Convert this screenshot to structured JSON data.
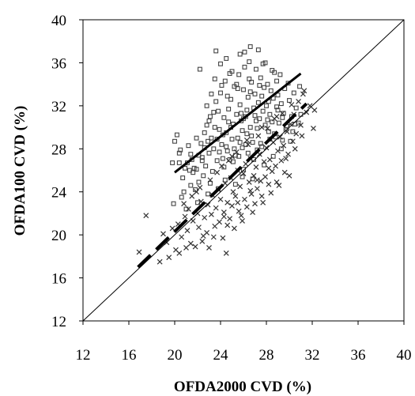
{
  "chart_data": {
    "type": "scatter",
    "title": "",
    "xlabel": "OFDA2000 CVD (%)",
    "ylabel": "OFDA100 CVD (%)",
    "xlim": [
      12,
      40
    ],
    "ylim": [
      12,
      40
    ],
    "xticks": [
      "12",
      "16",
      "20",
      "24",
      "28",
      "32",
      "36",
      "40"
    ],
    "yticks": [
      "12",
      "16",
      "20",
      "24",
      "28",
      "32",
      "36",
      "40"
    ],
    "grid": false,
    "legend": "none",
    "series": [
      {
        "marker": "square",
        "points": [
          [
            19.8,
            26.7
          ],
          [
            20.4,
            26.7
          ],
          [
            20.9,
            26.2
          ],
          [
            21.1,
            26.7
          ],
          [
            21.5,
            27.0
          ],
          [
            21.3,
            26.0
          ],
          [
            21.7,
            26.2
          ],
          [
            20.5,
            27.9
          ],
          [
            21.2,
            28.3
          ],
          [
            21.4,
            27.5
          ],
          [
            20.2,
            29.3
          ],
          [
            20.4,
            27.6
          ],
          [
            20.0,
            28.7
          ],
          [
            21.9,
            26.1
          ],
          [
            22.1,
            27.4
          ],
          [
            22.3,
            28.5
          ],
          [
            22.6,
            29.5
          ],
          [
            22.4,
            27.2
          ],
          [
            22.8,
            30.2
          ],
          [
            22.9,
            28.7
          ],
          [
            22.7,
            26.4
          ],
          [
            23.0,
            27.6
          ],
          [
            23.1,
            31.0
          ],
          [
            23.2,
            29.0
          ],
          [
            23.4,
            28.0
          ],
          [
            23.5,
            30.0
          ],
          [
            23.6,
            32.4
          ],
          [
            23.8,
            31.5
          ],
          [
            23.7,
            26.9
          ],
          [
            23.9,
            29.8
          ],
          [
            24.0,
            33.2
          ],
          [
            24.1,
            28.4
          ],
          [
            24.2,
            27.1
          ],
          [
            24.3,
            30.9
          ],
          [
            24.4,
            34.3
          ],
          [
            24.5,
            29.5
          ],
          [
            24.6,
            27.8
          ],
          [
            24.7,
            31.7
          ],
          [
            24.8,
            35.0
          ],
          [
            24.9,
            32.6
          ],
          [
            25.0,
            28.9
          ],
          [
            25.1,
            30.3
          ],
          [
            25.2,
            33.8
          ],
          [
            25.3,
            27.4
          ],
          [
            25.4,
            31.2
          ],
          [
            25.5,
            29.0
          ],
          [
            25.6,
            34.9
          ],
          [
            25.7,
            32.1
          ],
          [
            25.8,
            30.6
          ],
          [
            25.9,
            28.1
          ],
          [
            26.0,
            33.5
          ],
          [
            26.1,
            35.6
          ],
          [
            26.2,
            31.0
          ],
          [
            26.3,
            29.4
          ],
          [
            26.4,
            32.8
          ],
          [
            26.5,
            36.1
          ],
          [
            26.6,
            30.0
          ],
          [
            26.7,
            34.2
          ],
          [
            26.8,
            28.6
          ],
          [
            26.9,
            31.8
          ],
          [
            27.0,
            33.1
          ],
          [
            27.1,
            35.4
          ],
          [
            27.2,
            29.9
          ],
          [
            27.3,
            32.3
          ],
          [
            27.4,
            30.8
          ],
          [
            27.5,
            34.6
          ],
          [
            27.6,
            28.2
          ],
          [
            27.7,
            31.5
          ],
          [
            27.8,
            33.7
          ],
          [
            27.9,
            30.2
          ],
          [
            28.0,
            32.0
          ],
          [
            28.1,
            34.0
          ],
          [
            28.2,
            29.6
          ],
          [
            28.3,
            31.2
          ],
          [
            28.4,
            33.4
          ],
          [
            28.5,
            30.5
          ],
          [
            28.6,
            32.7
          ],
          [
            28.7,
            35.1
          ],
          [
            28.8,
            29.1
          ],
          [
            28.9,
            31.9
          ],
          [
            29.0,
            33.0
          ],
          [
            29.1,
            30.4
          ],
          [
            29.2,
            34.9
          ],
          [
            29.3,
            32.2
          ],
          [
            29.4,
            28.8
          ],
          [
            29.5,
            31.3
          ],
          [
            29.6,
            33.6
          ],
          [
            29.8,
            30.1
          ],
          [
            30.0,
            32.5
          ],
          [
            30.2,
            31.0
          ],
          [
            30.4,
            33.2
          ],
          [
            30.6,
            31.8
          ],
          [
            30.8,
            30.4
          ],
          [
            22.2,
            35.4
          ],
          [
            23.6,
            37.1
          ],
          [
            24.5,
            36.4
          ],
          [
            25.7,
            36.8
          ],
          [
            26.1,
            37.0
          ],
          [
            26.6,
            37.5
          ],
          [
            27.3,
            37.2
          ],
          [
            24.0,
            35.9
          ],
          [
            25.0,
            35.2
          ],
          [
            27.9,
            36.0
          ],
          [
            28.5,
            35.3
          ],
          [
            25.4,
            34.0
          ],
          [
            24.3,
            26.3
          ],
          [
            25.1,
            26.8
          ],
          [
            26.0,
            26.1
          ],
          [
            23.3,
            25.9
          ],
          [
            22.5,
            25.5
          ],
          [
            21.6,
            25.8
          ],
          [
            24.8,
            27.0
          ],
          [
            25.6,
            27.3
          ],
          [
            26.4,
            27.6
          ],
          [
            27.2,
            27.9
          ],
          [
            23.1,
            24.8
          ],
          [
            21.8,
            24.2
          ],
          [
            22.9,
            23.8
          ],
          [
            24.4,
            25.1
          ],
          [
            25.9,
            25.4
          ],
          [
            20.8,
            24.0
          ],
          [
            22.0,
            23.0
          ],
          [
            21.0,
            22.4
          ],
          [
            19.9,
            22.9
          ],
          [
            20.6,
            23.5
          ],
          [
            23.8,
            24.3
          ],
          [
            25.3,
            24.7
          ],
          [
            26.8,
            25.2
          ],
          [
            27.8,
            26.5
          ],
          [
            28.6,
            27.3
          ],
          [
            29.3,
            28.0
          ],
          [
            30.1,
            28.7
          ],
          [
            24.6,
            32.9
          ],
          [
            25.5,
            33.6
          ],
          [
            26.3,
            31.6
          ],
          [
            27.1,
            30.6
          ],
          [
            23.4,
            31.4
          ],
          [
            22.8,
            32.0
          ],
          [
            24.2,
            29.3
          ],
          [
            25.9,
            29.7
          ],
          [
            26.7,
            29.2
          ],
          [
            27.5,
            28.5
          ],
          [
            28.3,
            28.9
          ],
          [
            29.7,
            29.8
          ],
          [
            30.5,
            30.3
          ],
          [
            23.0,
            30.6
          ],
          [
            24.7,
            30.5
          ],
          [
            26.2,
            28.4
          ],
          [
            27.6,
            32.9
          ],
          [
            28.9,
            34.3
          ],
          [
            29.9,
            34.1
          ],
          [
            30.9,
            33.8
          ],
          [
            22.6,
            28.1
          ],
          [
            21.9,
            29.0
          ],
          [
            25.2,
            28.0
          ],
          [
            26.9,
            27.0
          ],
          [
            24.1,
            33.9
          ],
          [
            23.5,
            34.5
          ],
          [
            26.5,
            34.5
          ],
          [
            27.7,
            35.9
          ],
          [
            22.4,
            26.9
          ],
          [
            23.9,
            27.7
          ],
          [
            25.8,
            31.3
          ],
          [
            27.0,
            31.1
          ],
          [
            28.1,
            30.7
          ],
          [
            29.0,
            31.6
          ],
          [
            24.9,
            30.0
          ],
          [
            26.0,
            30.8
          ],
          [
            20.7,
            25.3
          ],
          [
            21.4,
            24.6
          ],
          [
            22.1,
            24.9
          ],
          [
            23.7,
            28.9
          ],
          [
            24.5,
            28.2
          ],
          [
            25.7,
            28.6
          ],
          [
            26.6,
            33.3
          ],
          [
            27.4,
            33.9
          ],
          [
            28.2,
            32.4
          ],
          [
            29.4,
            30.9
          ],
          [
            30.3,
            29.6
          ],
          [
            31.0,
            31.2
          ],
          [
            28.7,
            29.4
          ],
          [
            23.2,
            33.1
          ]
        ]
      },
      {
        "marker": "cross",
        "points": [
          [
            16.9,
            18.4
          ],
          [
            17.5,
            21.8
          ],
          [
            18.7,
            17.5
          ],
          [
            19.0,
            20.1
          ],
          [
            19.3,
            19.3
          ],
          [
            19.8,
            20.6
          ],
          [
            20.1,
            18.6
          ],
          [
            20.3,
            21.0
          ],
          [
            20.6,
            19.8
          ],
          [
            20.9,
            21.7
          ],
          [
            21.1,
            20.4
          ],
          [
            21.2,
            22.4
          ],
          [
            21.4,
            19.2
          ],
          [
            21.6,
            21.3
          ],
          [
            21.8,
            18.9
          ],
          [
            22.0,
            22.0
          ],
          [
            22.1,
            20.7
          ],
          [
            22.3,
            23.1
          ],
          [
            22.5,
            19.9
          ],
          [
            22.6,
            21.6
          ],
          [
            22.8,
            20.2
          ],
          [
            22.9,
            22.8
          ],
          [
            23.0,
            18.8
          ],
          [
            23.2,
            21.9
          ],
          [
            23.3,
            23.7
          ],
          [
            23.5,
            20.8
          ],
          [
            23.6,
            22.5
          ],
          [
            23.8,
            24.2
          ],
          [
            23.9,
            21.2
          ],
          [
            24.0,
            23.3
          ],
          [
            24.2,
            19.7
          ],
          [
            24.3,
            22.1
          ],
          [
            24.4,
            24.8
          ],
          [
            24.5,
            18.3
          ],
          [
            24.6,
            23.0
          ],
          [
            24.8,
            21.5
          ],
          [
            24.9,
            25.3
          ],
          [
            25.0,
            22.7
          ],
          [
            25.1,
            24.0
          ],
          [
            25.2,
            20.6
          ],
          [
            25.3,
            23.6
          ],
          [
            25.5,
            26.0
          ],
          [
            25.6,
            22.2
          ],
          [
            25.7,
            24.5
          ],
          [
            25.8,
            21.8
          ],
          [
            26.0,
            25.7
          ],
          [
            26.1,
            23.3
          ],
          [
            26.2,
            26.6
          ],
          [
            26.3,
            22.6
          ],
          [
            26.5,
            24.9
          ],
          [
            26.6,
            27.1
          ],
          [
            26.7,
            23.8
          ],
          [
            26.9,
            25.5
          ],
          [
            27.0,
            22.9
          ],
          [
            27.1,
            26.3
          ],
          [
            27.2,
            24.3
          ],
          [
            27.4,
            27.5
          ],
          [
            27.5,
            25.0
          ],
          [
            27.6,
            23.6
          ],
          [
            27.8,
            26.8
          ],
          [
            27.9,
            25.4
          ],
          [
            28.0,
            28.1
          ],
          [
            28.2,
            24.7
          ],
          [
            28.3,
            27.0
          ],
          [
            28.5,
            25.9
          ],
          [
            28.6,
            28.6
          ],
          [
            28.8,
            26.4
          ],
          [
            28.9,
            24.9
          ],
          [
            29.0,
            27.8
          ],
          [
            29.2,
            29.1
          ],
          [
            29.3,
            26.9
          ],
          [
            29.5,
            28.3
          ],
          [
            29.6,
            25.8
          ],
          [
            29.8,
            29.6
          ],
          [
            29.9,
            27.5
          ],
          [
            30.1,
            30.3
          ],
          [
            30.3,
            28.7
          ],
          [
            30.4,
            31.2
          ],
          [
            30.6,
            29.4
          ],
          [
            30.8,
            32.4
          ],
          [
            31.0,
            30.2
          ],
          [
            31.2,
            33.1
          ],
          [
            31.5,
            31.4
          ],
          [
            31.8,
            32.0
          ],
          [
            32.1,
            29.9
          ],
          [
            32.2,
            31.6
          ],
          [
            31.3,
            33.4
          ],
          [
            19.5,
            17.9
          ],
          [
            20.4,
            18.3
          ],
          [
            21.5,
            23.6
          ],
          [
            22.2,
            24.4
          ],
          [
            23.1,
            25.1
          ],
          [
            24.1,
            26.4
          ],
          [
            24.7,
            26.9
          ],
          [
            25.4,
            27.7
          ],
          [
            26.4,
            28.4
          ],
          [
            27.3,
            29.2
          ],
          [
            28.1,
            29.9
          ],
          [
            28.7,
            30.8
          ],
          [
            29.4,
            31.3
          ],
          [
            30.2,
            32.1
          ],
          [
            21.0,
            18.8
          ],
          [
            22.4,
            19.4
          ],
          [
            23.4,
            19.8
          ],
          [
            24.6,
            20.9
          ],
          [
            25.9,
            21.3
          ],
          [
            26.8,
            22.1
          ],
          [
            27.7,
            23.0
          ],
          [
            28.4,
            23.9
          ],
          [
            29.1,
            24.6
          ],
          [
            30.0,
            25.5
          ],
          [
            20.8,
            22.9
          ],
          [
            21.9,
            24.0
          ],
          [
            23.7,
            25.8
          ],
          [
            25.0,
            27.3
          ],
          [
            26.3,
            28.8
          ],
          [
            27.6,
            30.0
          ],
          [
            28.9,
            31.0
          ],
          [
            24.3,
            21.7
          ],
          [
            25.5,
            23.0
          ],
          [
            26.6,
            24.1
          ],
          [
            27.2,
            25.1
          ],
          [
            28.2,
            26.2
          ],
          [
            29.7,
            27.1
          ],
          [
            30.5,
            28.0
          ],
          [
            31.1,
            29.2
          ]
        ]
      }
    ],
    "lines": [
      {
        "style": "identity",
        "x": [
          12,
          40
        ],
        "y": [
          12,
          40
        ]
      },
      {
        "style": "solid",
        "x": [
          20,
          31
        ],
        "y": [
          25.8,
          35
        ]
      },
      {
        "style": "dashed",
        "x": [
          16.8,
          31.5
        ],
        "y": [
          17.0,
          32.2
        ]
      }
    ]
  }
}
